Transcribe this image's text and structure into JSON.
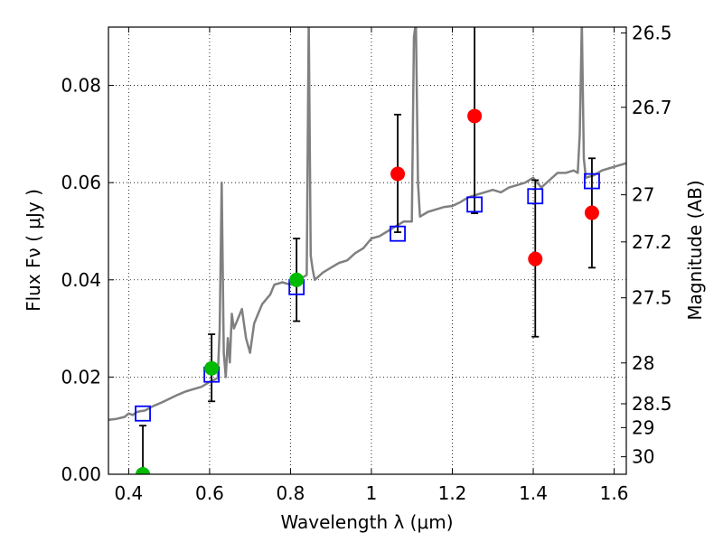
{
  "chart_data": {
    "type": "scatter",
    "xlabel": "Wavelength  λ (μm)",
    "ylabel": "Flux  Fν  ( μJy )",
    "ylabel_right": "Magnitude (AB)",
    "xlim": [
      0.35,
      1.63
    ],
    "ylim": [
      0.0,
      0.092
    ],
    "x_ticks": [
      0.4,
      0.6,
      0.8,
      1.0,
      1.2,
      1.4,
      1.6
    ],
    "x_tick_labels": [
      "0.4",
      "0.6",
      "0.8",
      "1",
      "1.2",
      "1.4",
      "1.6"
    ],
    "y_ticks": [
      0.0,
      0.02,
      0.04,
      0.06,
      0.08
    ],
    "y_tick_labels": [
      "0.00",
      "0.02",
      "0.04",
      "0.06",
      "0.08"
    ],
    "right_ticks": [
      {
        "label": "26.5",
        "flux": 0.0908
      },
      {
        "label": "26.7",
        "flux": 0.0755
      },
      {
        "label": "27",
        "flux": 0.0575
      },
      {
        "label": "27.2",
        "flux": 0.0478
      },
      {
        "label": "27.5",
        "flux": 0.0363
      },
      {
        "label": "28",
        "flux": 0.0229
      },
      {
        "label": "28.5",
        "flux": 0.0145
      },
      {
        "label": "29",
        "flux": 0.0096
      },
      {
        "label": "30",
        "flux": 0.0036
      }
    ],
    "grid": true,
    "model_spectrum": {
      "color": "#808080",
      "x": [
        0.35,
        0.37,
        0.39,
        0.4,
        0.41,
        0.42,
        0.43,
        0.44,
        0.46,
        0.48,
        0.5,
        0.52,
        0.54,
        0.56,
        0.58,
        0.6,
        0.62,
        0.625,
        0.63,
        0.635,
        0.64,
        0.645,
        0.65,
        0.655,
        0.66,
        0.67,
        0.68,
        0.69,
        0.7,
        0.71,
        0.72,
        0.73,
        0.74,
        0.75,
        0.76,
        0.78,
        0.8,
        0.82,
        0.84,
        0.845,
        0.85,
        0.855,
        0.86,
        0.88,
        0.9,
        0.92,
        0.94,
        0.96,
        0.98,
        1.0,
        1.02,
        1.04,
        1.06,
        1.08,
        1.1,
        1.105,
        1.11,
        1.115,
        1.12,
        1.14,
        1.16,
        1.18,
        1.2,
        1.22,
        1.24,
        1.26,
        1.28,
        1.3,
        1.32,
        1.34,
        1.36,
        1.38,
        1.4,
        1.42,
        1.44,
        1.46,
        1.48,
        1.5,
        1.51,
        1.515,
        1.52,
        1.525,
        1.53,
        1.55,
        1.57,
        1.59,
        1.61,
        1.63
      ],
      "y": [
        0.0112,
        0.0114,
        0.0118,
        0.0125,
        0.0122,
        0.0128,
        0.013,
        0.0131,
        0.014,
        0.0147,
        0.0155,
        0.0163,
        0.017,
        0.0175,
        0.018,
        0.019,
        0.0198,
        0.03,
        0.06,
        0.025,
        0.02,
        0.028,
        0.023,
        0.033,
        0.03,
        0.032,
        0.034,
        0.028,
        0.025,
        0.031,
        0.033,
        0.035,
        0.036,
        0.037,
        0.039,
        0.0395,
        0.039,
        0.04,
        0.041,
        0.094,
        0.045,
        0.042,
        0.04,
        0.0415,
        0.0425,
        0.0435,
        0.044,
        0.0455,
        0.0465,
        0.0485,
        0.049,
        0.05,
        0.051,
        0.052,
        0.052,
        0.09,
        0.093,
        0.06,
        0.053,
        0.054,
        0.0545,
        0.055,
        0.0552,
        0.056,
        0.057,
        0.0575,
        0.058,
        0.0585,
        0.058,
        0.059,
        0.0595,
        0.06,
        0.061,
        0.059,
        0.0605,
        0.062,
        0.062,
        0.0625,
        0.062,
        0.07,
        0.093,
        0.065,
        0.061,
        0.0615,
        0.0625,
        0.063,
        0.0635,
        0.064
      ]
    },
    "model_points": {
      "marker": "open-square",
      "color": "#0000ff",
      "x": [
        0.435,
        0.605,
        0.815,
        1.065,
        1.255,
        1.405,
        1.545
      ],
      "y": [
        0.0125,
        0.0205,
        0.0385,
        0.0495,
        0.0555,
        0.0572,
        0.0603
      ]
    },
    "detections": {
      "marker": "filled-circle",
      "color": "#00bb00",
      "x": [
        0.435,
        0.605,
        0.815
      ],
      "y": [
        0.0,
        0.0218,
        0.04
      ],
      "yerr_low": [
        0.0,
        0.0068,
        0.0085
      ],
      "yerr_high": [
        0.0,
        0.007,
        0.0085
      ]
    },
    "measurements": {
      "marker": "filled-circle",
      "color": "#ff0000",
      "x": [
        1.065,
        1.255,
        1.405,
        1.545
      ],
      "y": [
        0.0618,
        0.0737,
        0.0443,
        0.0538
      ],
      "yerr_low": [
        0.012,
        0.02,
        0.016,
        0.0113
      ],
      "yerr_high": [
        0.0122,
        0.02,
        0.0162,
        0.0112
      ]
    },
    "upper_limit_errorbar": {
      "x": 0.435,
      "y_low": 0.0,
      "y_high": 0.01
    }
  }
}
